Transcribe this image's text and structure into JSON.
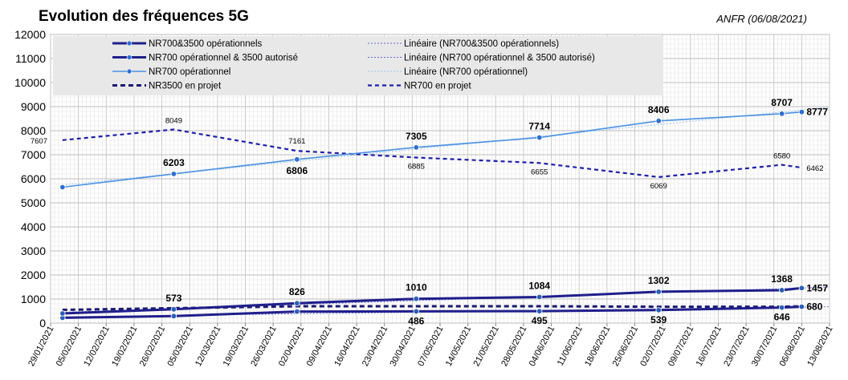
{
  "chart_data": {
    "type": "line",
    "title": "Evolution des fréquences 5G",
    "credit": "ANFR (06/08/2021)",
    "xlabel": "",
    "ylabel": "",
    "ylim": [
      0,
      12000
    ],
    "yticks": [
      0,
      1000,
      2000,
      3000,
      4000,
      5000,
      6000,
      7000,
      8000,
      9000,
      10000,
      11000,
      12000
    ],
    "xlim": [
      "2021-01-29",
      "2021-08-13"
    ],
    "xticks": [
      "29/01/2021",
      "05/02/2021",
      "12/02/2021",
      "19/02/2021",
      "26/02/2021",
      "05/03/2021",
      "12/03/2021",
      "19/03/2021",
      "26/03/2021",
      "02/04/2021",
      "09/04/2021",
      "16/04/2021",
      "23/04/2021",
      "30/04/2021",
      "07/05/2021",
      "14/05/2021",
      "21/05/2021",
      "28/05/2021",
      "04/06/2021",
      "11/06/2021",
      "18/06/2021",
      "25/06/2021",
      "02/07/2021",
      "09/07/2021",
      "16/07/2021",
      "23/07/2021",
      "30/07/2021",
      "06/08/2021",
      "13/08/2021"
    ],
    "grid": true,
    "legend_position": "top",
    "series": [
      {
        "name": "NR700&3500 opérationnels",
        "color": "#1f1f8c",
        "style": "solid-thick",
        "points": [
          [
            "2021-02-01",
            400
          ],
          [
            "2021-03-01",
            573
          ],
          [
            "2021-04-01",
            826
          ],
          [
            "2021-05-01",
            1010
          ],
          [
            "2021-06-01",
            1084
          ],
          [
            "2021-07-01",
            1302
          ],
          [
            "2021-08-01",
            1368
          ],
          [
            "2021-08-06",
            1457
          ]
        ],
        "labels": [
          "",
          "573",
          "826",
          "1010",
          "1084",
          "1302",
          "1368",
          "1457"
        ]
      },
      {
        "name": "NR700 opérationnel & 3500 autorisé",
        "color": "#1f1f8c",
        "style": "solid-thick",
        "points": [
          [
            "2021-02-01",
            220
          ],
          [
            "2021-03-01",
            290
          ],
          [
            "2021-04-01",
            480
          ],
          [
            "2021-05-01",
            486
          ],
          [
            "2021-06-01",
            495
          ],
          [
            "2021-07-01",
            539
          ],
          [
            "2021-08-01",
            646
          ],
          [
            "2021-08-06",
            680
          ]
        ],
        "labels": [
          "",
          "",
          "",
          "486",
          "495",
          "539",
          "646",
          "680"
        ]
      },
      {
        "name": "NR700 opérationnel",
        "color": "#4a90e2",
        "style": "solid",
        "points": [
          [
            "2021-02-01",
            5650
          ],
          [
            "2021-03-01",
            6203
          ],
          [
            "2021-04-01",
            6806
          ],
          [
            "2021-05-01",
            7305
          ],
          [
            "2021-06-01",
            7714
          ],
          [
            "2021-07-01",
            8406
          ],
          [
            "2021-08-01",
            8707
          ],
          [
            "2021-08-06",
            8777
          ]
        ],
        "labels": [
          "",
          "6203",
          "6806",
          "7305",
          "7714",
          "8406",
          "8707",
          "8777"
        ]
      },
      {
        "name": "NR3500 en projet",
        "color": "#1a1a6e",
        "style": "dashed-thick",
        "points": [
          [
            "2021-02-01",
            550
          ],
          [
            "2021-03-01",
            620
          ],
          [
            "2021-04-01",
            700
          ],
          [
            "2021-05-01",
            700
          ],
          [
            "2021-06-01",
            700
          ],
          [
            "2021-07-01",
            680
          ],
          [
            "2021-08-01",
            680
          ],
          [
            "2021-08-06",
            700
          ]
        ],
        "labels": [
          "",
          "",
          "",
          "",
          "",
          "",
          "",
          ""
        ]
      },
      {
        "name": "NR700 en projet",
        "color": "#1f1fa8",
        "style": "dashed",
        "points": [
          [
            "2021-02-01",
            7607
          ],
          [
            "2021-03-01",
            8049
          ],
          [
            "2021-04-01",
            7161
          ],
          [
            "2021-05-01",
            6885
          ],
          [
            "2021-06-01",
            6655
          ],
          [
            "2021-07-01",
            6069
          ],
          [
            "2021-08-01",
            6580
          ],
          [
            "2021-08-06",
            6462
          ]
        ],
        "labels": [
          "7607",
          "8049",
          "7161",
          "6885",
          "6655",
          "6069",
          "6580",
          "6462"
        ]
      }
    ],
    "trendlines": [
      {
        "name": "Linéaire (NR700&3500 opérationnels)",
        "of": 0,
        "color": "#6666cc"
      },
      {
        "name": "Linéaire (NR700 opérationnel & 3500 autorisé)",
        "of": 1,
        "color": "#6666cc"
      },
      {
        "name": "Linéaire (NR700 opérationnel)",
        "of": 2,
        "color": "#9cc3ee"
      }
    ]
  }
}
